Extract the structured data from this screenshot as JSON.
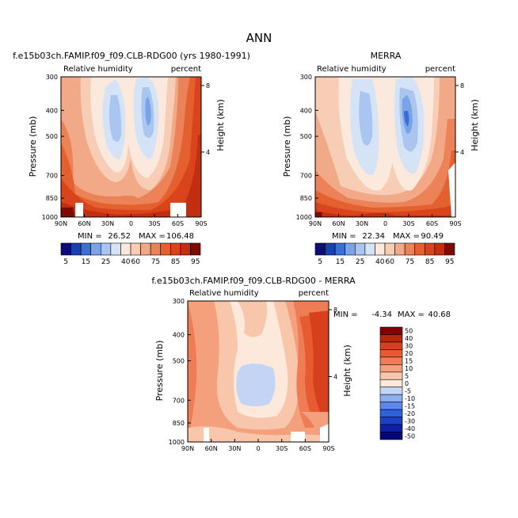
{
  "figure_title": "ANN",
  "colors": {
    "rh": [
      "#0d0d7a",
      "#1a3fb0",
      "#3a6fd8",
      "#7ba3e8",
      "#aac6f0",
      "#d4e3f6",
      "#fbe9de",
      "#f7cdb5",
      "#f2a987",
      "#ec8258",
      "#e4602f",
      "#d9441c",
      "#c22e10",
      "#7e0a04"
    ],
    "diff": [
      "#050577",
      "#0f1fa8",
      "#1d3fc8",
      "#2d61e0",
      "#5a89ea",
      "#8eafef",
      "#c3d4f4",
      "#fde8dc",
      "#f8c6ab",
      "#f4a07d",
      "#ee7c55",
      "#e65b31",
      "#d6401c",
      "#b52710",
      "#800202"
    ]
  },
  "chart_data": [
    {
      "type": "contour",
      "panel": "top-left",
      "title": "f.e15b03ch.FAMIP.f09_f09.CLB-RDG00 (yrs 1980-1991)",
      "left_label": "Relative humidity",
      "right_label": "percent",
      "ylabel": "Pressure (mb)",
      "y2label": "Height (km)",
      "x_ticks": [
        "90N",
        "60N",
        "30N",
        "0",
        "30S",
        "60S",
        "90S"
      ],
      "y_ticks": [
        "300",
        "400",
        "500",
        "700",
        "850",
        "1000"
      ],
      "y2_ticks": [
        "8",
        "4"
      ],
      "ylim": [
        1000,
        300
      ],
      "stats": {
        "min_label": "MIN =",
        "min": "26.52",
        "max_label": "MAX =",
        "max": "106.48"
      },
      "colorbar_labels": [
        "5",
        "15",
        "25",
        "40",
        "60",
        "75",
        "85",
        "95"
      ]
    },
    {
      "type": "contour",
      "panel": "top-right",
      "title": "MERRA",
      "left_label": "Relative humidity",
      "right_label": "percent",
      "ylabel": "Pressure (mb)",
      "y2label": "Height (km)",
      "x_ticks": [
        "90N",
        "60N",
        "30N",
        "0",
        "30S",
        "60S",
        "90S"
      ],
      "y_ticks": [
        "300",
        "400",
        "500",
        "700",
        "850",
        "1000"
      ],
      "y2_ticks": [
        "8",
        "4"
      ],
      "ylim": [
        1000,
        300
      ],
      "stats": {
        "min_label": "MIN =",
        "min": "22.34",
        "max_label": "MAX =",
        "max": "90.49"
      },
      "colorbar_labels": [
        "5",
        "15",
        "25",
        "40",
        "60",
        "75",
        "85",
        "95"
      ]
    },
    {
      "type": "contour",
      "panel": "bottom-center",
      "title": "f.e15b03ch.FAMIP.f09_f09.CLB-RDG00 - MERRA",
      "left_label": "Relative humidity",
      "right_label": "percent",
      "ylabel": "Pressure (mb)",
      "y2label": "Height (km)",
      "x_ticks": [
        "90N",
        "60N",
        "30N",
        "0",
        "30S",
        "60S",
        "90S"
      ],
      "y_ticks": [
        "300",
        "400",
        "500",
        "700",
        "850",
        "1000"
      ],
      "y2_ticks": [
        "8",
        "4"
      ],
      "ylim": [
        1000,
        300
      ],
      "stats": {
        "min_label": "MIN =",
        "min": "-4.34",
        "max_label": "MAX =",
        "max": "40.68"
      },
      "colorbar_labels": [
        "50",
        "40",
        "30",
        "20",
        "15",
        "10",
        "5",
        "0",
        "-5",
        "-10",
        "-15",
        "-20",
        "-30",
        "-40",
        "-50"
      ]
    }
  ]
}
